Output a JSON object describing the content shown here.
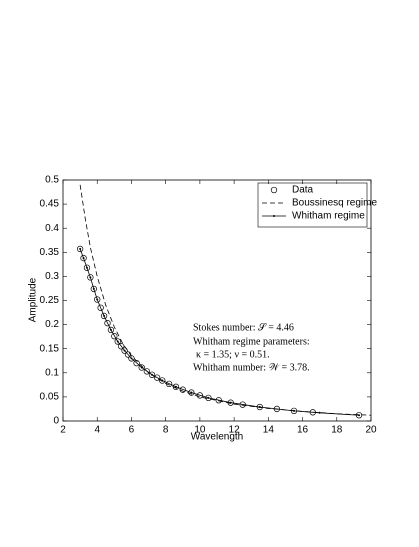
{
  "chart_data": {
    "type": "line",
    "xlabel": "Wavelength",
    "ylabel": "Amplitude",
    "xlim": [
      2,
      20
    ],
    "ylim": [
      0,
      0.5
    ],
    "xticks": [
      2,
      4,
      6,
      8,
      10,
      12,
      14,
      16,
      18,
      20
    ],
    "yticks": [
      0,
      0.05,
      0.1,
      0.15,
      0.2,
      0.25,
      0.3,
      0.35,
      0.4,
      0.45,
      0.5
    ],
    "legend": "upper right",
    "series": [
      {
        "name": "Data",
        "color": "#000000",
        "style": "circle",
        "x": [
          3.0,
          3.2,
          3.4,
          3.6,
          3.8,
          4.0,
          4.2,
          4.4,
          4.6,
          4.8,
          5.0,
          5.2,
          5.4,
          5.6,
          5.8,
          6.0,
          6.3,
          6.6,
          6.9,
          7.2,
          7.5,
          7.8,
          8.2,
          8.6,
          9.0,
          9.5,
          10.0,
          10.5,
          11.1,
          11.8,
          12.5,
          13.5,
          14.5,
          15.5,
          16.6,
          19.3
        ],
        "values": [
          0.357,
          0.338,
          0.318,
          0.298,
          0.274,
          0.252,
          0.235,
          0.218,
          0.203,
          0.189,
          0.176,
          0.165,
          0.155,
          0.146,
          0.138,
          0.13,
          0.12,
          0.111,
          0.103,
          0.096,
          0.09,
          0.084,
          0.077,
          0.071,
          0.065,
          0.059,
          0.053,
          0.048,
          0.043,
          0.038,
          0.034,
          0.029,
          0.025,
          0.021,
          0.018,
          0.012
        ]
      },
      {
        "name": "Boussinesq regime",
        "color": "#000000",
        "style": "dashed",
        "x": [
          3.0,
          3.3,
          3.6,
          4.0,
          4.5,
          5.0,
          5.5,
          6.0,
          7.0,
          8.0,
          9.0,
          10.0,
          12.0,
          14.0,
          16.0,
          18.0,
          20.0
        ],
        "values": [
          0.49,
          0.42,
          0.36,
          0.3,
          0.24,
          0.195,
          0.16,
          0.135,
          0.1,
          0.078,
          0.062,
          0.05,
          0.035,
          0.026,
          0.02,
          0.015,
          0.012
        ]
      },
      {
        "name": "Whitham regime",
        "color": "#000000",
        "style": "solid-dot",
        "x": [
          3.0,
          3.2,
          3.4,
          3.6,
          3.8,
          4.0,
          4.4,
          4.8,
          5.2,
          5.6,
          6.0,
          6.6,
          7.2,
          7.8,
          8.6,
          9.5,
          10.5,
          11.8,
          13.5,
          15.5,
          17.0,
          19.3
        ],
        "values": [
          0.357,
          0.338,
          0.318,
          0.298,
          0.274,
          0.252,
          0.218,
          0.189,
          0.165,
          0.146,
          0.13,
          0.111,
          0.096,
          0.084,
          0.071,
          0.059,
          0.048,
          0.038,
          0.029,
          0.021,
          0.017,
          0.012
        ]
      }
    ],
    "annotations": [
      "Stokes number: 𝒮 = 4.46",
      "Whitham regime parameters:",
      "κ = 1.35; ν = 0.51.",
      "Whitham number: 𝒲 = 3.78."
    ]
  }
}
